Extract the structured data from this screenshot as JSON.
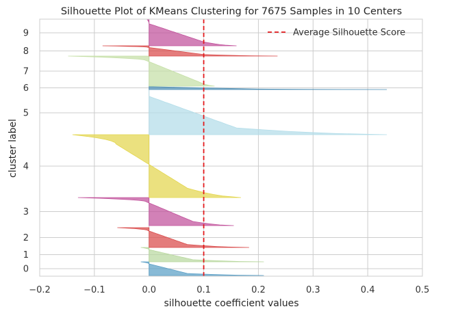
{
  "chart_data": {
    "type": "area",
    "title": "Silhouette Plot of KMeans Clustering for 7675 Samples in 10 Centers",
    "xlabel": "silhouette coefficient values",
    "ylabel": "cluster label",
    "xlim": [
      -0.2,
      0.5
    ],
    "x_ticks": [
      "−0.2",
      "−0.1",
      "0.0",
      "0.1",
      "0.2",
      "0.3",
      "0.4",
      "0.5"
    ],
    "x_tick_values": [
      -0.2,
      -0.1,
      0.0,
      0.1,
      0.2,
      0.3,
      0.4,
      0.5
    ],
    "grid": true,
    "legend_position": "top-right",
    "average_silhouette_score": 0.1,
    "average_line": {
      "name": "Average Silhouette Score",
      "color": "#e31a1c",
      "style": "dashed"
    },
    "clusters": [
      {
        "label": "0",
        "min": -0.015,
        "max": 0.21,
        "tail": 0.0,
        "neck": 0.07,
        "color": "#5a9fc6"
      },
      {
        "label": "1",
        "min": -0.015,
        "max": 0.21,
        "tail": 0.0,
        "neck": 0.08,
        "color": "#b9d89f"
      },
      {
        "label": "2",
        "min": -0.058,
        "max": 0.183,
        "tail": -0.002,
        "neck": 0.07,
        "color": "#d94a4a"
      },
      {
        "label": "3",
        "min": -0.13,
        "max": 0.155,
        "tail": -0.005,
        "neck": 0.08,
        "color": "#c1519b"
      },
      {
        "label": "4",
        "min": -0.14,
        "max": 0.168,
        "tail": -0.06,
        "neck": 0.07,
        "color": "#e3d64d"
      },
      {
        "label": "5",
        "min": 0.0,
        "max": 0.435,
        "tail": 0.0,
        "neck": 0.16,
        "color": "#b3dde9"
      },
      {
        "label": "6",
        "min": 0.0,
        "max": 0.435,
        "tail": 0.0,
        "neck": 0.2,
        "color": "#4d8fb5"
      },
      {
        "label": "7",
        "min": -0.148,
        "max": 0.12,
        "tail": -0.005,
        "neck": 0.09,
        "color": "#c5dfa6"
      },
      {
        "label": "8",
        "min": -0.085,
        "max": 0.235,
        "tail": -0.002,
        "neck": 0.1,
        "color": "#d94a4a"
      },
      {
        "label": "9",
        "min": -0.003,
        "max": 0.16,
        "tail": 0.0,
        "neck": 0.1,
        "color": "#c1519b"
      }
    ]
  }
}
